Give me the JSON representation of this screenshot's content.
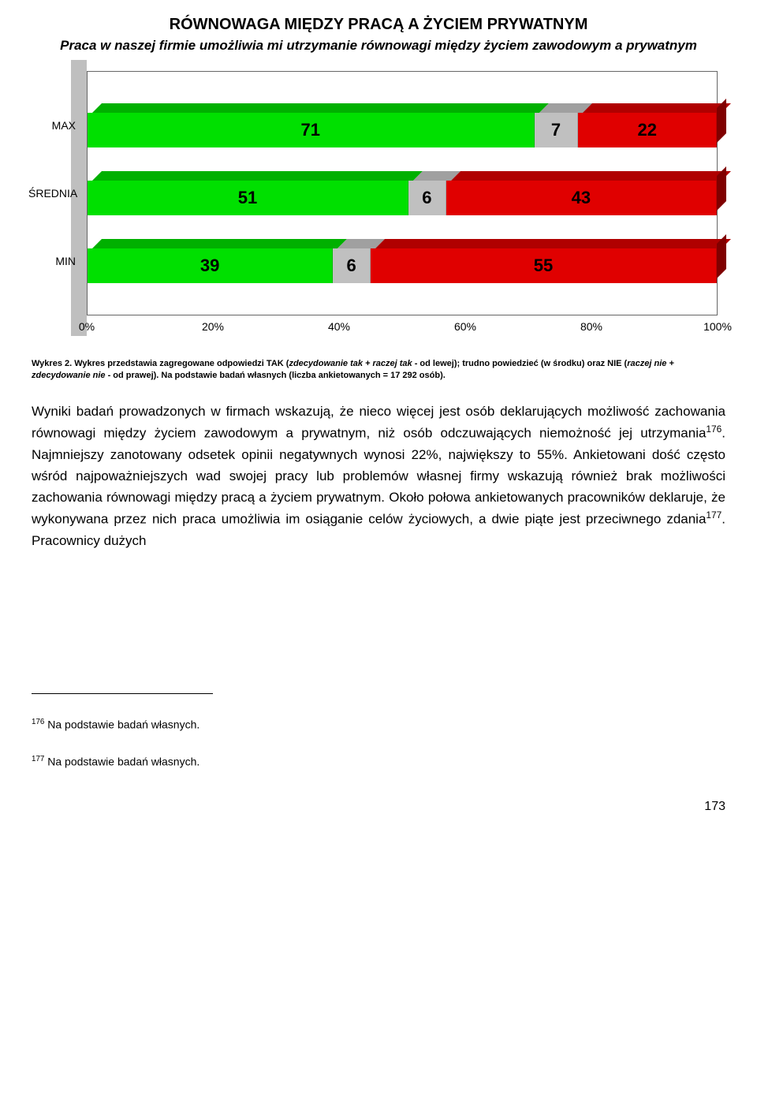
{
  "title": "RÓWNOWAGA MIĘDZY PRACĄ A ŻYCIEM PRYWATNYM",
  "subtitle": "Praca w naszej firmie umożliwia mi utrzymanie równowagi między życiem zawodowym a prywatnym",
  "chart": {
    "type": "stacked-bar-horizontal-3d",
    "categories": [
      "MAX",
      "ŚREDNIA",
      "MIN"
    ],
    "series_colors": [
      "#00e000",
      "#c0c0c0",
      "#e00000"
    ],
    "series_top_colors": [
      "#00b000",
      "#a0a0a0",
      "#b00000"
    ],
    "right_cap_color": "#800000",
    "rows": [
      {
        "label": "MAX",
        "values": [
          71,
          7,
          22
        ]
      },
      {
        "label": "ŚREDNIA",
        "values": [
          51,
          6,
          43
        ]
      },
      {
        "label": "MIN",
        "values": [
          39,
          6,
          55
        ]
      }
    ],
    "xticks": [
      "0%",
      "20%",
      "40%",
      "60%",
      "80%",
      "100%"
    ],
    "xtick_positions_pct": [
      0,
      20,
      40,
      60,
      80,
      100
    ],
    "value_label_fontsize": 22,
    "axis_label_fontsize": 14,
    "wall_color": "#bfbfbf",
    "background_color": "#ffffff"
  },
  "caption_prefix": "Wykres 2. Wykres przedstawia zagregowane odpowiedzi TAK (",
  "caption_i1": "zdecydowanie tak + raczej tak",
  "caption_mid1": " - od lewej); trudno powiedzieć (w środku) oraz NIE (",
  "caption_i2": "raczej nie + zdecydowanie nie",
  "caption_mid2": " - od prawej). Na podstawie badań własnych (liczba ankietowanych = 17 292 osób).",
  "body_p1a": "Wyniki badań prowadzonych w firmach wskazują, że nieco więcej jest osób deklarujących możliwość zachowania równowagi między życiem zawodowym a prywatnym, niż osób odczuwających niemożność jej utrzymania",
  "body_p1_sup1": "176",
  "body_p1b": ". Najmniejszy zanotowany odsetek opinii negatywnych wynosi 22%, największy to 55%. Ankietowani dość często wśród najpoważniejszych wad swojej pracy lub problemów własnej firmy wskazują również brak możliwości zachowania równowagi między pracą a życiem prywatnym. Około połowa ankietowanych pracowników deklaruje, że wykonywana przez nich praca umożliwia im osiąganie celów życiowych, a dwie piąte jest przeciwnego zdania",
  "body_p1_sup2": "177",
  "body_p1c": ". Pracownicy dużych",
  "footnote1_num": "176",
  "footnote1_text": " Na podstawie badań własnych.",
  "footnote2_num": "177",
  "footnote2_text": " Na podstawie badań własnych.",
  "page_number": "173"
}
